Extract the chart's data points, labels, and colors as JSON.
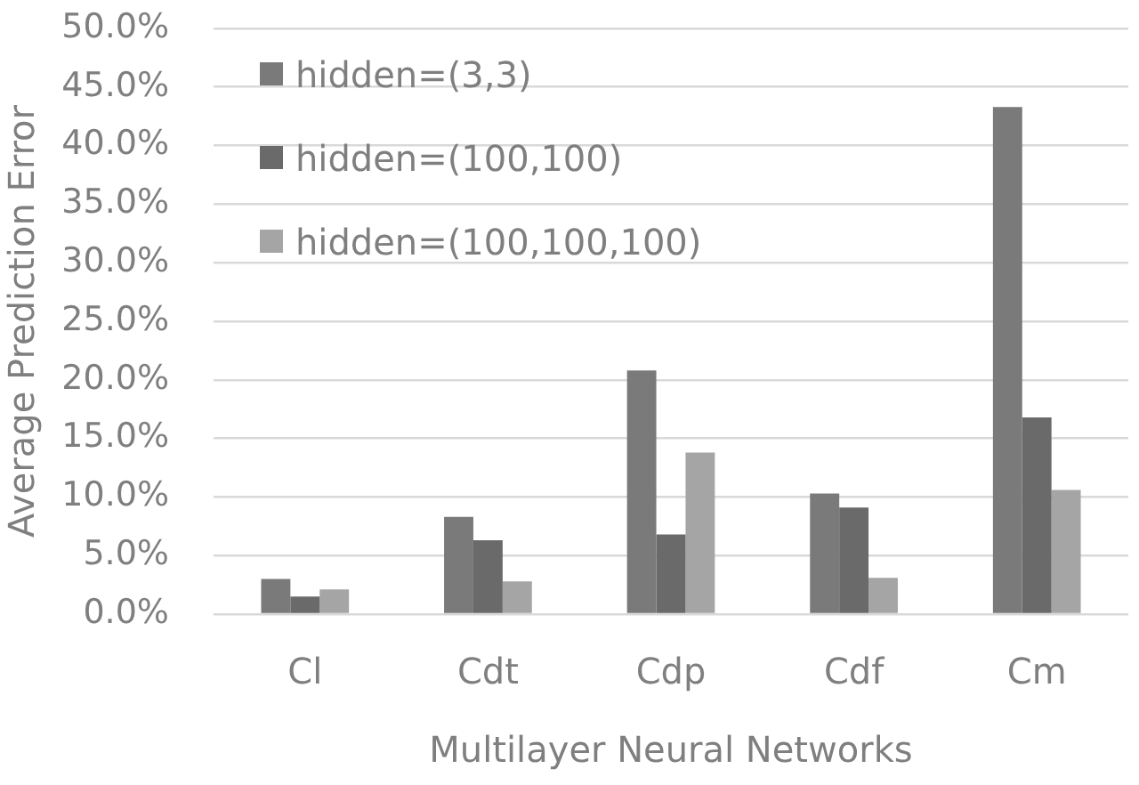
{
  "chart_data": {
    "type": "bar",
    "xlabel": "Multilayer Neural Networks",
    "ylabel": "Average Prediction Error",
    "categories": [
      "Cl",
      "Cdt",
      "Cdp",
      "Cdf",
      "Cm"
    ],
    "series": [
      {
        "name": "hidden=(3,3)",
        "color": "#7a7a7a",
        "values": [
          3.0,
          8.3,
          20.8,
          10.3,
          43.3
        ]
      },
      {
        "name": "hidden=(100,100)",
        "color": "#6a6a6a",
        "values": [
          1.5,
          6.3,
          6.8,
          9.1,
          16.8
        ]
      },
      {
        "name": "hidden=(100,100,100)",
        "color": "#a5a5a5",
        "values": [
          2.1,
          2.8,
          13.8,
          3.1,
          10.6
        ]
      }
    ],
    "ylim": [
      0,
      50
    ],
    "yticks": [
      {
        "value": 0,
        "label": "0.0%"
      },
      {
        "value": 5,
        "label": "5.0%"
      },
      {
        "value": 10,
        "label": "10.0%"
      },
      {
        "value": 15,
        "label": "15.0%"
      },
      {
        "value": 20,
        "label": "20.0%"
      },
      {
        "value": 25,
        "label": "25.0%"
      },
      {
        "value": 30,
        "label": "30.0%"
      },
      {
        "value": 35,
        "label": "35.0%"
      },
      {
        "value": 40,
        "label": "40.0%"
      },
      {
        "value": 45,
        "label": "45.0%"
      },
      {
        "value": 50,
        "label": "50.0%"
      }
    ],
    "grid": "y",
    "legend": "top left"
  }
}
